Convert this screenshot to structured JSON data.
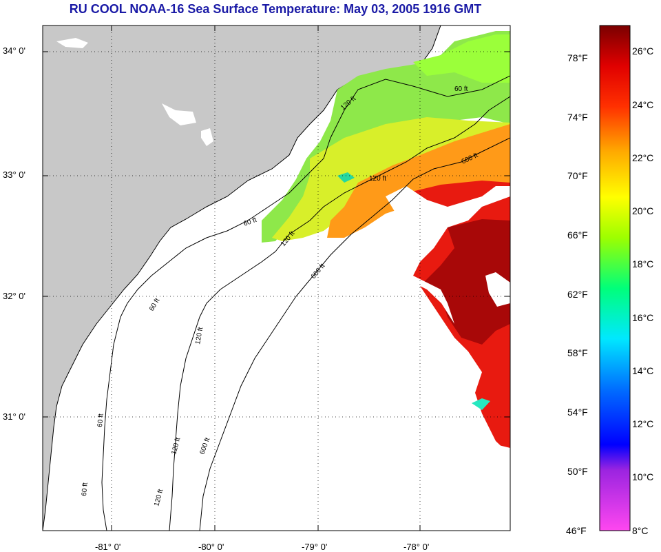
{
  "title": "RU COOL  NOAA-16  Sea Surface Temperature:  May 03, 2005 1916 GMT",
  "latitude_labels": [
    "34° 0'",
    "33° 0'",
    "32° 0'",
    "31° 0'"
  ],
  "longitude_labels": [
    "-81° 0'",
    "-80° 0'",
    "-79° 0'",
    "-78° 0'"
  ],
  "contour_labels": [
    "60 ft",
    "120 ft",
    "600 ft",
    "60 ft",
    "120 ft",
    "600 ft",
    "60 ft",
    "120 ft",
    "600 ft",
    "60 ft",
    "120 ft",
    "120 ft",
    "60 ft",
    "120 ft"
  ],
  "colorbar": {
    "fahrenheit_labels": [
      "78°F",
      "74°F",
      "70°F",
      "66°F",
      "62°F",
      "58°F",
      "54°F",
      "50°F",
      "46°F"
    ],
    "celsius_labels": [
      "26°C",
      "24°C",
      "22°C",
      "20°C",
      "18°C",
      "16°C",
      "14°C",
      "12°C",
      "10°C",
      "8°C"
    ]
  },
  "colors": {
    "title": "#1a1aa6",
    "land": "#c8c8c8",
    "no_data": "#ffffff",
    "cold": "#ff2fd8",
    "warm": "#8b0000"
  }
}
